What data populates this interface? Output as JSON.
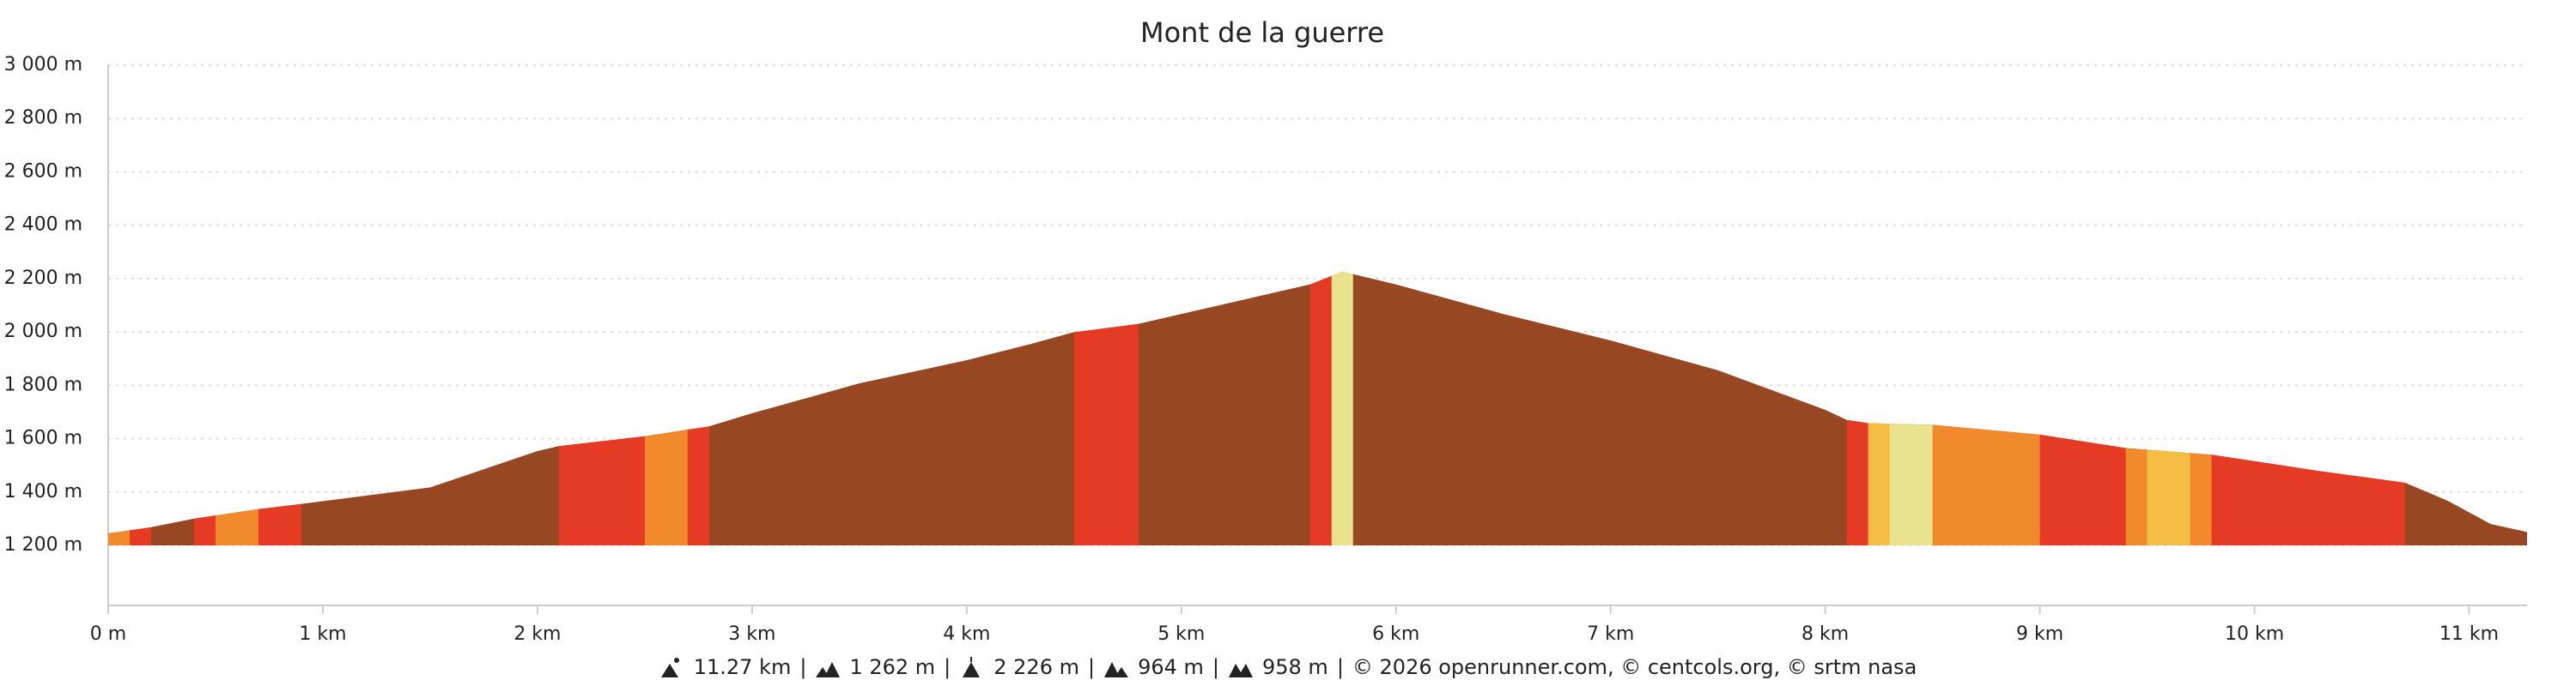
{
  "chart_data": {
    "type": "area",
    "title": "Mont de la guerre",
    "x": [
      0,
      0.2,
      0.4,
      0.7,
      0.9,
      1.5,
      2.0,
      2.1,
      2.5,
      2.7,
      2.8,
      3.0,
      3.5,
      4.0,
      4.3,
      4.5,
      4.8,
      5.2,
      5.6,
      5.75,
      6.0,
      6.5,
      7.0,
      7.5,
      8.0,
      8.1,
      8.2,
      8.5,
      9.0,
      9.4,
      9.8,
      10.3,
      10.7,
      10.9,
      11.1,
      11.27
    ],
    "values": [
      1245,
      1268,
      1300,
      1336,
      1355,
      1417,
      1553,
      1572,
      1609,
      1634,
      1646,
      1695,
      1807,
      1894,
      1955,
      1999,
      2030,
      2104,
      2178,
      2226,
      2178,
      2067,
      1968,
      1856,
      1708,
      1670,
      1658,
      1652,
      1615,
      1565,
      1540,
      1479,
      1435,
      1367,
      1280,
      1250
    ],
    "bands": [
      {
        "x": [
          0,
          0.1
        ],
        "color": "#f08a2c"
      },
      {
        "x": [
          0.1,
          0.2
        ],
        "color": "#e53a23"
      },
      {
        "x": [
          0.2,
          0.4
        ],
        "color": "#974822"
      },
      {
        "x": [
          0.4,
          0.5
        ],
        "color": "#e53a23"
      },
      {
        "x": [
          0.5,
          0.7
        ],
        "color": "#f08a2c"
      },
      {
        "x": [
          0.7,
          0.9
        ],
        "color": "#e53a23"
      },
      {
        "x": [
          0.9,
          2.1
        ],
        "color": "#974822"
      },
      {
        "x": [
          2.1,
          2.5
        ],
        "color": "#e53a23"
      },
      {
        "x": [
          2.5,
          2.7
        ],
        "color": "#f08a2c"
      },
      {
        "x": [
          2.7,
          2.8
        ],
        "color": "#e53a23"
      },
      {
        "x": [
          2.8,
          4.5
        ],
        "color": "#974822"
      },
      {
        "x": [
          4.5,
          4.8
        ],
        "color": "#e53a23"
      },
      {
        "x": [
          4.8,
          5.6
        ],
        "color": "#974822"
      },
      {
        "x": [
          5.6,
          5.7
        ],
        "color": "#e53a23"
      },
      {
        "x": [
          5.7,
          5.8
        ],
        "color": "#e9e390"
      },
      {
        "x": [
          5.8,
          8.1
        ],
        "color": "#974822"
      },
      {
        "x": [
          8.1,
          8.2
        ],
        "color": "#e53a23"
      },
      {
        "x": [
          8.2,
          8.3
        ],
        "color": "#f3be43"
      },
      {
        "x": [
          8.3,
          8.5
        ],
        "color": "#e9e390"
      },
      {
        "x": [
          8.5,
          9.0
        ],
        "color": "#f08a2c"
      },
      {
        "x": [
          9.0,
          9.4
        ],
        "color": "#e53a23"
      },
      {
        "x": [
          9.4,
          9.5
        ],
        "color": "#f08a2c"
      },
      {
        "x": [
          9.5,
          9.7
        ],
        "color": "#f3be43"
      },
      {
        "x": [
          9.7,
          9.8
        ],
        "color": "#f08a2c"
      },
      {
        "x": [
          9.8,
          10.7
        ],
        "color": "#e53a23"
      },
      {
        "x": [
          10.7,
          11.27
        ],
        "color": "#974822"
      }
    ],
    "xlim": [
      0,
      11.27
    ],
    "ylim": [
      975,
      3000
    ],
    "xticks": [
      {
        "value": 0,
        "label": "0 m"
      },
      {
        "value": 1,
        "label": "1 km"
      },
      {
        "value": 2,
        "label": "2 km"
      },
      {
        "value": 3,
        "label": "3 km"
      },
      {
        "value": 4,
        "label": "4 km"
      },
      {
        "value": 5,
        "label": "5 km"
      },
      {
        "value": 6,
        "label": "6 km"
      },
      {
        "value": 7,
        "label": "7 km"
      },
      {
        "value": 8,
        "label": "8 km"
      },
      {
        "value": 9,
        "label": "9 km"
      },
      {
        "value": 10,
        "label": "10 km"
      },
      {
        "value": 11,
        "label": "11 km"
      }
    ],
    "yticks": [
      {
        "value": 1200,
        "label": "1 200 m"
      },
      {
        "value": 1400,
        "label": "1 400 m"
      },
      {
        "value": 1600,
        "label": "1 600 m"
      },
      {
        "value": 1800,
        "label": "1 800 m"
      },
      {
        "value": 2000,
        "label": "2 000 m"
      },
      {
        "value": 2200,
        "label": "2 200 m"
      },
      {
        "value": 2400,
        "label": "2 400 m"
      },
      {
        "value": 2600,
        "label": "2 600 m"
      },
      {
        "value": 2800,
        "label": "2 800 m"
      },
      {
        "value": 3000,
        "label": "3 000 m"
      }
    ],
    "grid": true,
    "footer": {
      "stats": [
        "11.27 km",
        "1 262 m",
        "2 226 m",
        "964 m",
        "958 m"
      ],
      "separator": "|",
      "credits": "© 2026 openrunner.com, © centcols.org, © srtm nasa"
    }
  }
}
